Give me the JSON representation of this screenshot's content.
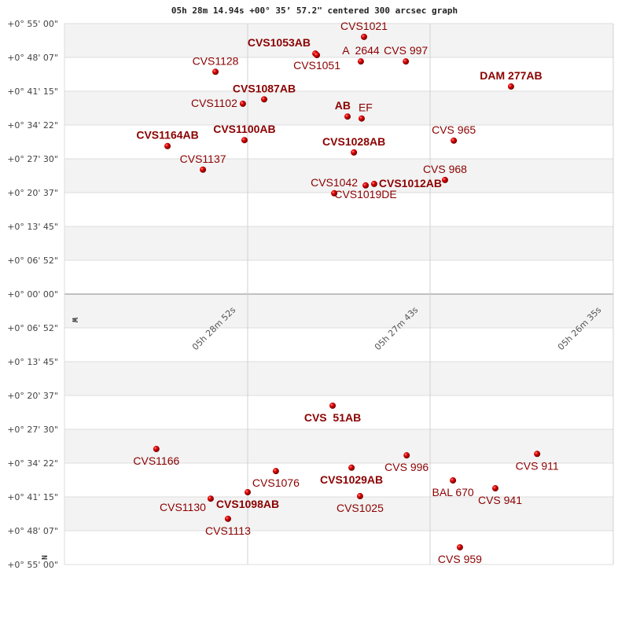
{
  "chart_data": {
    "type": "scatter",
    "title": "05h 28m 14.94s +00° 35’ 57.2\" centered 300 arcsec graph",
    "x_ticks": [
      "05h 28m 52s",
      "05h 27m 43s",
      "05h 26m 35s"
    ],
    "y_ticks_top": [
      "+0° 55' 00\"",
      "+0° 48' 07\"",
      "+0° 41' 15\"",
      "+0° 34' 22\"",
      "+0° 27' 30\"",
      "+0° 20' 37\"",
      "+0° 13' 45\"",
      "+0° 06' 52\"",
      "+0° 00' 00\""
    ],
    "y_ticks_bottom": [
      "+0° 06' 52\"",
      "+0° 13' 45\"",
      "+0° 20' 37\"",
      "+0° 27' 30\"",
      "+0° 34' 22\"",
      "+0° 41' 15\"",
      "+0° 48' 07\"",
      "+0° 55' 00\""
    ],
    "direction_labels": {
      "west": "W",
      "north": "N"
    },
    "grid": true,
    "marker_color": "#dd0000",
    "label_color": "#8b0000",
    "band_color": "#f3f3f3",
    "panels": {
      "top": [
        {
          "name": "CVS1021",
          "ra": "05h28m08.3s",
          "dec_arcmin": 52.3,
          "bold": false
        },
        {
          "name": "CVS1053AB",
          "ra": "05h28m26.6s",
          "dec_arcmin": 48.9,
          "bold": true
        },
        {
          "name": "CVS1051",
          "ra": "05h28m26.0s",
          "dec_arcmin": 48.6,
          "bold": false
        },
        {
          "name": "A  2644",
          "ra": "05h28m09.5s",
          "dec_arcmin": 47.3,
          "bold": false
        },
        {
          "name": "CVS 997",
          "ra": "05h27m52.6s",
          "dec_arcmin": 47.3,
          "bold": false
        },
        {
          "name": "DAM 277AB",
          "ra": "05h27m13.1s",
          "dec_arcmin": 42.2,
          "bold": true
        },
        {
          "name": "CVS1128",
          "ra": "05h29m04.1s",
          "dec_arcmin": 45.2,
          "bold": false
        },
        {
          "name": "CVS1102",
          "ra": "05h28m53.8s",
          "dec_arcmin": 38.7,
          "bold": false
        },
        {
          "name": "CVS1087AB",
          "ra": "05h28m45.8s",
          "dec_arcmin": 39.6,
          "bold": true
        },
        {
          "name": "AB",
          "ra": "05h28m14.5s",
          "dec_arcmin": 36.1,
          "bold": true
        },
        {
          "name": "EF",
          "ra": "05h28m09.2s",
          "dec_arcmin": 35.7,
          "bold": false
        },
        {
          "name": "CVS1100AB",
          "ra": "05h28m53.2s",
          "dec_arcmin": 31.3,
          "bold": true
        },
        {
          "name": "CVS1164AB",
          "ra": "05h29m22.1s",
          "dec_arcmin": 30.1,
          "bold": true
        },
        {
          "name": "CVS 965",
          "ra": "05h27m34.6s",
          "dec_arcmin": 31.2,
          "bold": false
        },
        {
          "name": "CVS1028AB",
          "ra": "05h28m12.1s",
          "dec_arcmin": 28.8,
          "bold": true
        },
        {
          "name": "CVS1137",
          "ra": "05h29m08.8s",
          "dec_arcmin": 25.3,
          "bold": false
        },
        {
          "name": "CVS 968",
          "ra": "05h27m37.9s",
          "dec_arcmin": 23.2,
          "bold": false
        },
        {
          "name": "CVS1012AB",
          "ra": "05h28m04.5s",
          "dec_arcmin": 22.4,
          "bold": true
        },
        {
          "name": "CVS1019DE",
          "ra": "05h28m07.7s",
          "dec_arcmin": 22.1,
          "bold": false
        },
        {
          "name": "CVS1042",
          "ra": "05h28m19.5s",
          "dec_arcmin": 20.5,
          "bold": false
        }
      ],
      "bottom": [
        {
          "name": "CVS  51AB",
          "ra": "05h28m20.1s",
          "dec_arcmin": 22.7,
          "bold": true
        },
        {
          "name": "CVS1166",
          "ra": "05h29m26.3s",
          "dec_arcmin": 31.5,
          "bold": false
        },
        {
          "name": "CVS 996",
          "ra": "05h27m52.3s",
          "dec_arcmin": 32.8,
          "bold": false
        },
        {
          "name": "CVS 911",
          "ra": "05h27m03.3s",
          "dec_arcmin": 32.5,
          "bold": false
        },
        {
          "name": "CVS1029AB",
          "ra": "05h28m13.0s",
          "dec_arcmin": 35.3,
          "bold": true
        },
        {
          "name": "CVS1076",
          "ra": "05h28m41.4s",
          "dec_arcmin": 36.0,
          "bold": false
        },
        {
          "name": "BAL 670",
          "ra": "05h27m34.9s",
          "dec_arcmin": 37.9,
          "bold": false
        },
        {
          "name": "CVS 941",
          "ra": "05h27m19.0s",
          "dec_arcmin": 39.5,
          "bold": false
        },
        {
          "name": "CVS1098AB",
          "ra": "05h28m52.0s",
          "dec_arcmin": 40.3,
          "bold": true
        },
        {
          "name": "CVS1130",
          "ra": "05h29m05.9s",
          "dec_arcmin": 41.6,
          "bold": false
        },
        {
          "name": "CVS1025",
          "ra": "05h28m09.8s",
          "dec_arcmin": 41.1,
          "bold": false
        },
        {
          "name": "CVS1113",
          "ra": "05h28m59.4s",
          "dec_arcmin": 45.7,
          "bold": false
        },
        {
          "name": "CVS 959",
          "ra": "05h27m32.3s",
          "dec_arcmin": 51.5,
          "bold": false
        }
      ]
    }
  }
}
